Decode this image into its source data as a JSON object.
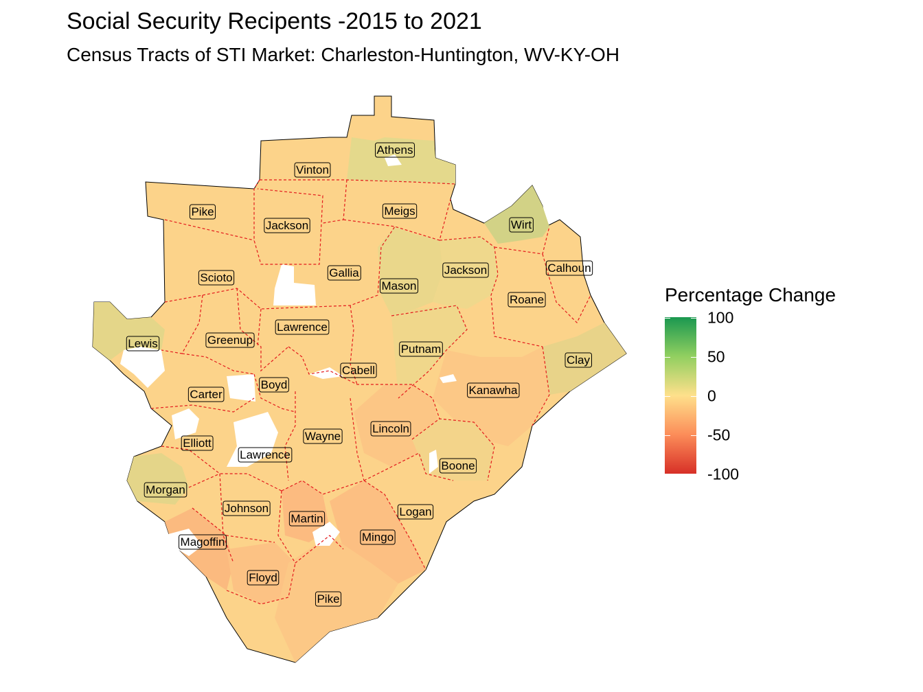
{
  "title": "Social Security Recipents -2015 to 2021",
  "subtitle": "Census Tracts of STI Market: Charleston-Huntington, WV-KY-OH",
  "legend": {
    "title": "Percentage Change",
    "ticks": [
      "100",
      "50",
      "0",
      "-50",
      "-100"
    ],
    "colors": [
      "#1a9850",
      "#91cf60",
      "#fee08b",
      "#fc8d59",
      "#d73027"
    ]
  },
  "counties": [
    {
      "name": "Athens",
      "fill": "#e4d98c"
    },
    {
      "name": "Vinton",
      "fill": "#fbdc90"
    },
    {
      "name": "Meigs",
      "fill": "#f5db8d"
    },
    {
      "name": "Pike",
      "fill": "#fcd58c"
    },
    {
      "name": "Jackson",
      "fill": "#fcd68c"
    },
    {
      "name": "Wirt",
      "fill": "#dad588"
    },
    {
      "name": "Calhoun",
      "fill": "#fcd48a"
    },
    {
      "name": "Scioto",
      "fill": "#fcd28a"
    },
    {
      "name": "Gallia",
      "fill": "#fbd78d"
    },
    {
      "name": "Mason",
      "fill": "#ecd88c"
    },
    {
      "name": "Jackson",
      "fill": "#efd88c"
    },
    {
      "name": "Roane",
      "fill": "#fcd38a"
    },
    {
      "name": "Lewis",
      "fill": "#ecd68a"
    },
    {
      "name": "Greenup",
      "fill": "#fcd38a"
    },
    {
      "name": "Lawrence",
      "fill": "#fcd38a"
    },
    {
      "name": "Putnam",
      "fill": "#f3d78b"
    },
    {
      "name": "Clay",
      "fill": "#f0d38a"
    },
    {
      "name": "Cabell",
      "fill": "#fcd18a"
    },
    {
      "name": "Boyd",
      "fill": "#fcce88"
    },
    {
      "name": "Carter",
      "fill": "#fcd08a"
    },
    {
      "name": "Kanawha",
      "fill": "#fcc886"
    },
    {
      "name": "Lincoln",
      "fill": "#fcc685"
    },
    {
      "name": "Wayne",
      "fill": "#fcd18a"
    },
    {
      "name": "Elliott",
      "fill": "#fcd08a"
    },
    {
      "name": "Lawrence",
      "fill": "#fcd08a"
    },
    {
      "name": "Boone",
      "fill": "#f5d48a"
    },
    {
      "name": "Morgan",
      "fill": "#ead68a"
    },
    {
      "name": "Johnson",
      "fill": "#fcce88"
    },
    {
      "name": "Logan",
      "fill": "#fcc886"
    },
    {
      "name": "Martin",
      "fill": "#fcbb80"
    },
    {
      "name": "Mingo",
      "fill": "#fcbf82"
    },
    {
      "name": "Magoffin",
      "fill": "#fbba7f"
    },
    {
      "name": "Floyd",
      "fill": "#fcc284"
    },
    {
      "name": "Pike",
      "fill": "#fcc886"
    }
  ]
}
